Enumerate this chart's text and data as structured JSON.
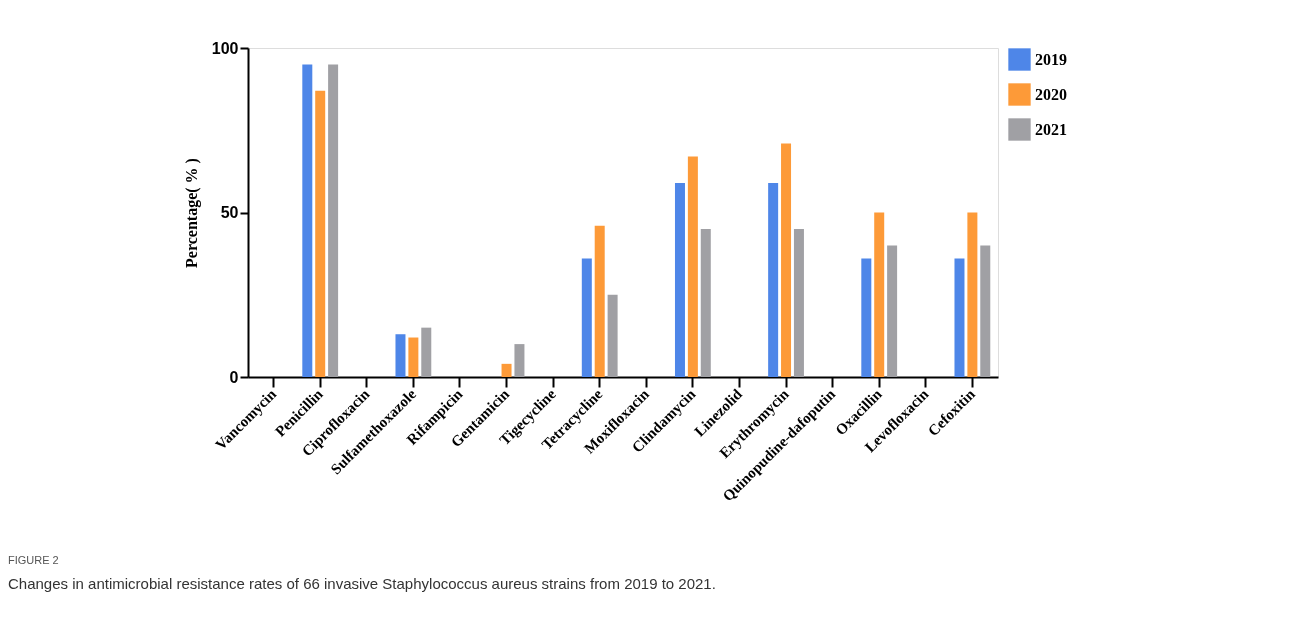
{
  "chart_data": {
    "type": "bar",
    "ylabel": "Percentage( % )",
    "categories": [
      "Vancomycin",
      "Penicillin",
      "Ciprofloxacin",
      "Sulfamethoxazole",
      "Rifampicin",
      "Gentamicin",
      "Tigecycline",
      "Tetracycline",
      "Moxifloxacin",
      "Clindamycin",
      "Linezolid",
      "Erythromycin",
      "Quinopudine-dafoputin",
      "Oxacillin",
      "Levofloxacin",
      "Cefoxitin"
    ],
    "series": [
      {
        "name": "2019",
        "color": "#4e86e8",
        "values": [
          0,
          95,
          0,
          13,
          0,
          0,
          0,
          36,
          0,
          59,
          0,
          59,
          0,
          36,
          0,
          36
        ]
      },
      {
        "name": "2020",
        "color": "#fd9a38",
        "values": [
          0,
          87,
          0,
          12,
          0,
          4,
          0,
          46,
          0,
          67,
          0,
          71,
          0,
          50,
          0,
          50
        ]
      },
      {
        "name": "2021",
        "color": "#a0a0a4",
        "values": [
          0,
          95,
          0,
          15,
          0,
          10,
          0,
          25,
          0,
          45,
          0,
          45,
          0,
          40,
          0,
          40
        ]
      }
    ],
    "ylim": [
      0,
      100
    ],
    "yticks": [
      0,
      50,
      100
    ],
    "grid": false,
    "legend": "top right",
    "annotations": [
      "FIGURE 2",
      "Changes in antimicrobial resistance rates of 66 invasive Staphylococcus aureus strains from 2019 to 2021."
    ]
  }
}
